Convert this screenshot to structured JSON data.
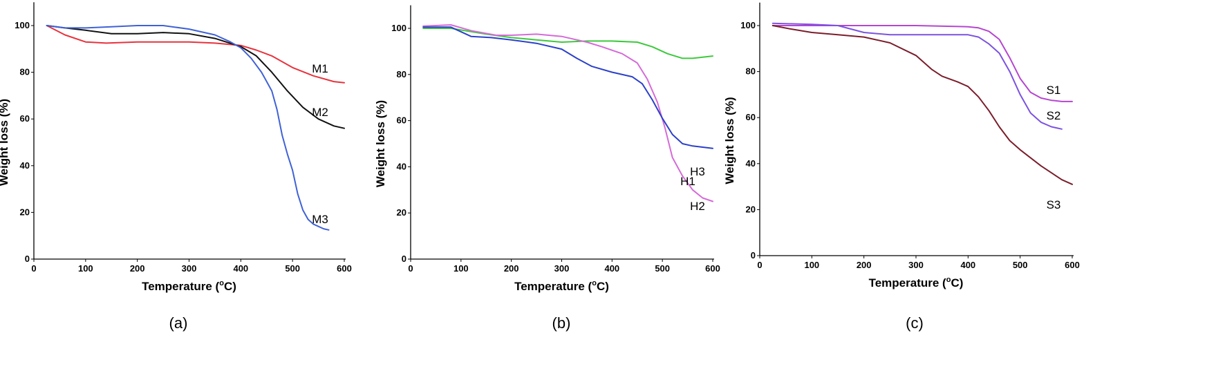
{
  "chart_data": [
    {
      "type": "line",
      "caption": "(a)",
      "xlabel": "Temperature (oC)",
      "xlabel_parts": {
        "main": "Temperature (",
        "sup": "o",
        "tail": "C)"
      },
      "ylabel": "Weight loss (%)",
      "xlim": [
        0,
        600
      ],
      "ylim": [
        0,
        110
      ],
      "xticks": [
        "0",
        "100",
        "200",
        "300",
        "400",
        "500",
        "600"
      ],
      "yticks": [
        "0",
        "20",
        "40",
        "60",
        "80",
        "100"
      ],
      "grid": false,
      "legend": "inline labels",
      "series": [
        {
          "name": "M1",
          "color": "#e8323c",
          "x": [
            25,
            60,
            100,
            140,
            200,
            250,
            300,
            350,
            400,
            430,
            460,
            500,
            540,
            580,
            600
          ],
          "y": [
            100,
            96,
            93,
            92.5,
            93,
            93,
            93,
            92.5,
            91.5,
            89.5,
            87,
            82,
            78.5,
            76,
            75.5
          ]
        },
        {
          "name": "M2",
          "color": "#111111",
          "x": [
            25,
            60,
            100,
            150,
            200,
            250,
            300,
            350,
            400,
            430,
            460,
            490,
            520,
            550,
            580,
            600
          ],
          "y": [
            100,
            99,
            98,
            96.5,
            96.5,
            97,
            96.5,
            94.5,
            91,
            87,
            80,
            72,
            65,
            60,
            57,
            56
          ]
        },
        {
          "name": "M3",
          "color": "#3f61d6",
          "x": [
            25,
            60,
            100,
            150,
            200,
            250,
            300,
            350,
            380,
            400,
            420,
            440,
            460,
            470,
            480,
            490,
            500,
            510,
            520,
            530,
            540,
            560,
            570
          ],
          "y": [
            100,
            99,
            99,
            99.5,
            100,
            100,
            98.5,
            96,
            93,
            90.5,
            86,
            80,
            72,
            64,
            53,
            45,
            38,
            28,
            21,
            17,
            15,
            13,
            12.5
          ]
        }
      ],
      "series_labels": [
        "M1",
        "M2",
        "M3"
      ]
    },
    {
      "type": "line",
      "caption": "(b)",
      "xlabel": "Temperature (oC)",
      "xlabel_parts": {
        "main": "Temperature (",
        "sup": "o",
        "tail": "C)"
      },
      "ylabel": "Weight loss (%)",
      "xlim": [
        0,
        600
      ],
      "ylim": [
        0,
        110
      ],
      "xticks": [
        "0",
        "100",
        "200",
        "300",
        "400",
        "500",
        "600"
      ],
      "yticks": [
        "0",
        "20",
        "40",
        "60",
        "80",
        "100"
      ],
      "grid": false,
      "legend": "inline labels",
      "series": [
        {
          "name": "H1",
          "color": "#3cc93c",
          "x": [
            25,
            80,
            150,
            200,
            250,
            300,
            350,
            400,
            450,
            480,
            510,
            540,
            560,
            580,
            600
          ],
          "y": [
            100,
            100,
            97.5,
            96,
            95,
            94,
            94.5,
            94.5,
            94,
            92,
            89,
            87,
            87,
            87.5,
            88
          ]
        },
        {
          "name": "H2",
          "color": "#d56ad8",
          "x": [
            25,
            80,
            120,
            170,
            200,
            250,
            300,
            350,
            380,
            420,
            450,
            470,
            490,
            505,
            520,
            540,
            560,
            580,
            600
          ],
          "y": [
            101,
            101.5,
            99,
            97,
            97,
            97.5,
            96.5,
            94,
            92,
            89,
            85,
            78,
            68,
            57,
            44,
            36,
            30,
            26.5,
            25
          ]
        },
        {
          "name": "H3",
          "color": "#2b40c9",
          "x": [
            25,
            80,
            120,
            160,
            200,
            250,
            300,
            330,
            360,
            400,
            440,
            460,
            480,
            500,
            520,
            540,
            560,
            580,
            600
          ],
          "y": [
            100.5,
            100.5,
            96.5,
            96,
            95,
            93.5,
            91,
            87,
            83.5,
            81,
            79,
            76,
            69,
            61,
            54,
            50,
            49,
            48.5,
            48
          ]
        }
      ],
      "series_labels": [
        "H1",
        "H2",
        "H3"
      ]
    },
    {
      "type": "line",
      "caption": "(c)",
      "xlabel": "Temperature (oC)",
      "xlabel_parts": {
        "main": "Temperature (",
        "sup": "o",
        "tail": "C)"
      },
      "ylabel": "Weight loss (%)",
      "xlim": [
        0,
        600
      ],
      "ylim": [
        0,
        110
      ],
      "xticks": [
        "0",
        "100",
        "200",
        "300",
        "400",
        "500",
        "600"
      ],
      "yticks": [
        "0",
        "20",
        "40",
        "60",
        "80",
        "100"
      ],
      "grid": false,
      "legend": "inline labels",
      "series": [
        {
          "name": "S1",
          "color": "#b545d0",
          "x": [
            25,
            100,
            200,
            300,
            400,
            420,
            440,
            460,
            480,
            500,
            520,
            540,
            560,
            580,
            600
          ],
          "y": [
            100,
            100,
            100,
            100,
            99.5,
            99,
            97.5,
            94,
            86,
            77,
            71,
            68.5,
            67.5,
            67,
            67
          ]
        },
        {
          "name": "S2",
          "color": "#7b52e0",
          "x": [
            25,
            100,
            150,
            200,
            250,
            300,
            350,
            400,
            420,
            440,
            460,
            480,
            500,
            520,
            540,
            560,
            580
          ],
          "y": [
            101,
            100.5,
            100,
            97,
            96,
            96,
            96,
            96,
            95,
            92,
            88,
            80,
            70,
            62,
            58,
            56,
            55
          ]
        },
        {
          "name": "S3",
          "color": "#7a1d2a",
          "x": [
            25,
            60,
            100,
            150,
            200,
            250,
            300,
            330,
            350,
            380,
            400,
            420,
            440,
            460,
            480,
            500,
            540,
            580,
            600
          ],
          "y": [
            100,
            98.5,
            97,
            96,
            95,
            92.5,
            87,
            81,
            78,
            75.5,
            73.5,
            69,
            63,
            56,
            50,
            46,
            39,
            33,
            31
          ]
        }
      ],
      "series_labels": [
        "S1",
        "S2",
        "S3"
      ]
    }
  ]
}
